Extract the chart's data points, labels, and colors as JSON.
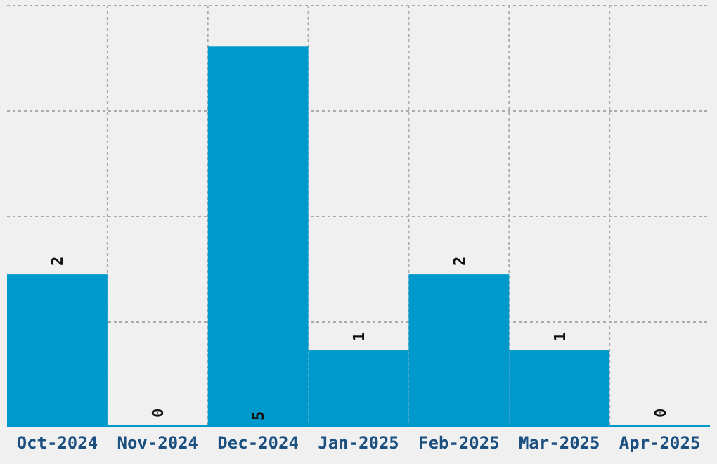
{
  "chart_data": {
    "type": "bar",
    "categories": [
      "Oct-2024",
      "Nov-2024",
      "Dec-2024",
      "Jan-2025",
      "Feb-2025",
      "Mar-2025",
      "Apr-2025"
    ],
    "values": [
      2,
      0,
      5,
      1,
      2,
      1,
      0
    ],
    "color": "#0099cc",
    "data_labels": true,
    "grid": true,
    "tick_labels": "x",
    "ylim": [
      0,
      5.54
    ],
    "yticks": [
      {
        "value": 1.37,
        "label": null
      },
      {
        "value": 2.76,
        "label": null
      },
      {
        "value": 4.15,
        "label": null
      },
      {
        "value": 5.54,
        "label": null
      }
    ]
  }
}
